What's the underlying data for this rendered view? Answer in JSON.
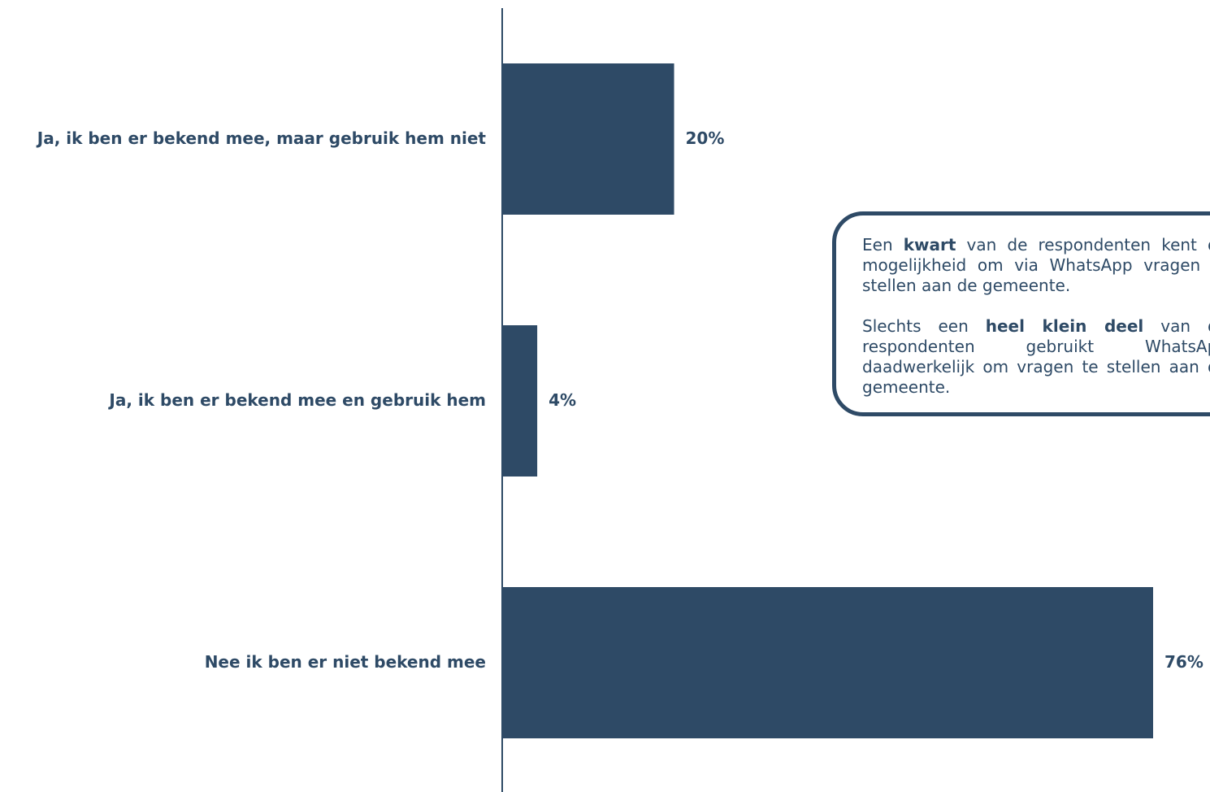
{
  "chart_data": {
    "type": "bar",
    "orientation": "horizontal",
    "categories": [
      "Ja, ik ben er bekend mee, maar gebruik hem niet",
      "Ja, ik ben er bekend mee en gebruik hem",
      "Nee ik ben er niet bekend mee"
    ],
    "values": [
      20,
      4,
      76
    ],
    "value_labels": [
      "20%",
      "4%",
      "76%"
    ],
    "value_unit": "%",
    "xlim": [
      0,
      76
    ],
    "grid": false,
    "bar_color": "#2e4a66",
    "text_color": "#2e4a66"
  },
  "callout": {
    "p1_a": "Een ",
    "p1_b": "kwart",
    "p1_c": " van de respondenten kent de mogelijkheid om via WhatsApp vragen te stellen aan de gemeente.",
    "p2_a": "Slechts een ",
    "p2_b": "heel klein deel",
    "p2_c": " van de respondenten gebruikt WhatsApp daadwerkelijk om vragen te stellen aan de gemeente."
  }
}
